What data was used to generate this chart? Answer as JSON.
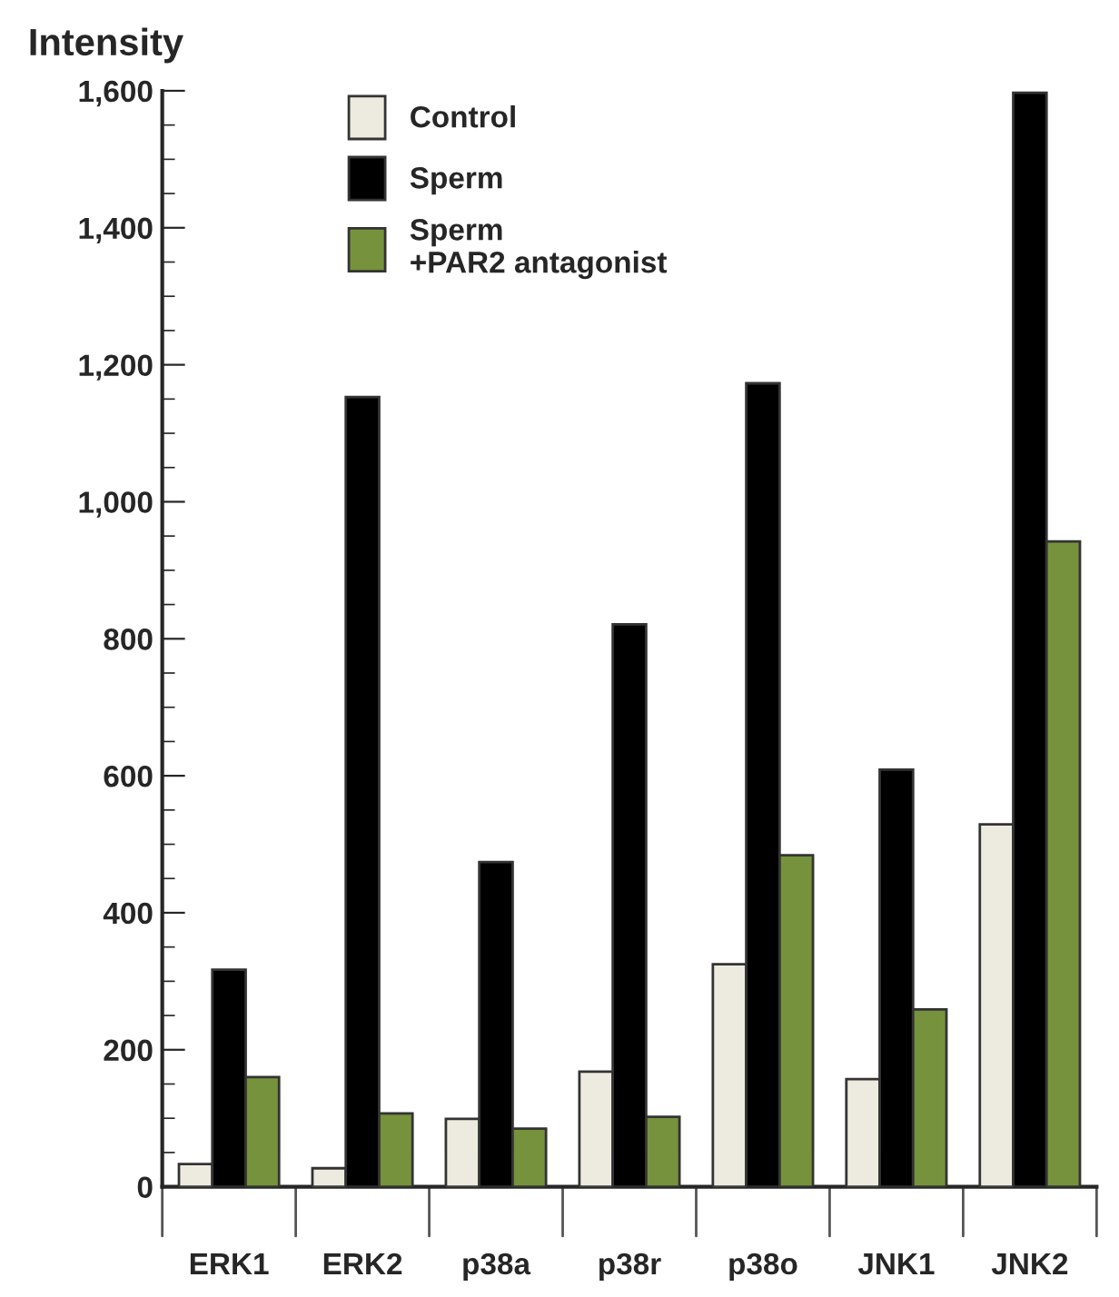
{
  "chart_data": {
    "type": "bar",
    "ylabel": "Intensity",
    "categories": [
      "ERK1",
      "ERK2",
      "p38a",
      "p38r",
      "p38o",
      "JNK1",
      "JNK2"
    ],
    "series": [
      {
        "name": "Control",
        "color": "#edebe0",
        "values": [
          33,
          27,
          99,
          168,
          325,
          157,
          529
        ]
      },
      {
        "name": "Sperm",
        "color": "#000000",
        "values": [
          317,
          1153,
          474,
          821,
          1173,
          609,
          1597
        ]
      },
      {
        "name": "Sperm\n+PAR2 antagonist",
        "color": "#76923c",
        "values": [
          160,
          107,
          85,
          102,
          484,
          259,
          942
        ]
      }
    ],
    "ylim": [
      0,
      1600
    ],
    "yticks": [
      0,
      {
        "value": 200,
        "label": "200"
      },
      {
        "value": 400,
        "label": "400"
      },
      {
        "value": 600,
        "label": "600"
      },
      {
        "value": 800,
        "label": "800"
      },
      {
        "value": 1000,
        "label": "1,000"
      },
      {
        "value": 1200,
        "label": "1,200"
      },
      {
        "value": 1400,
        "label": "1,400"
      },
      {
        "value": 1600,
        "label": "1,600"
      }
    ],
    "legend": "top",
    "grid": false
  }
}
